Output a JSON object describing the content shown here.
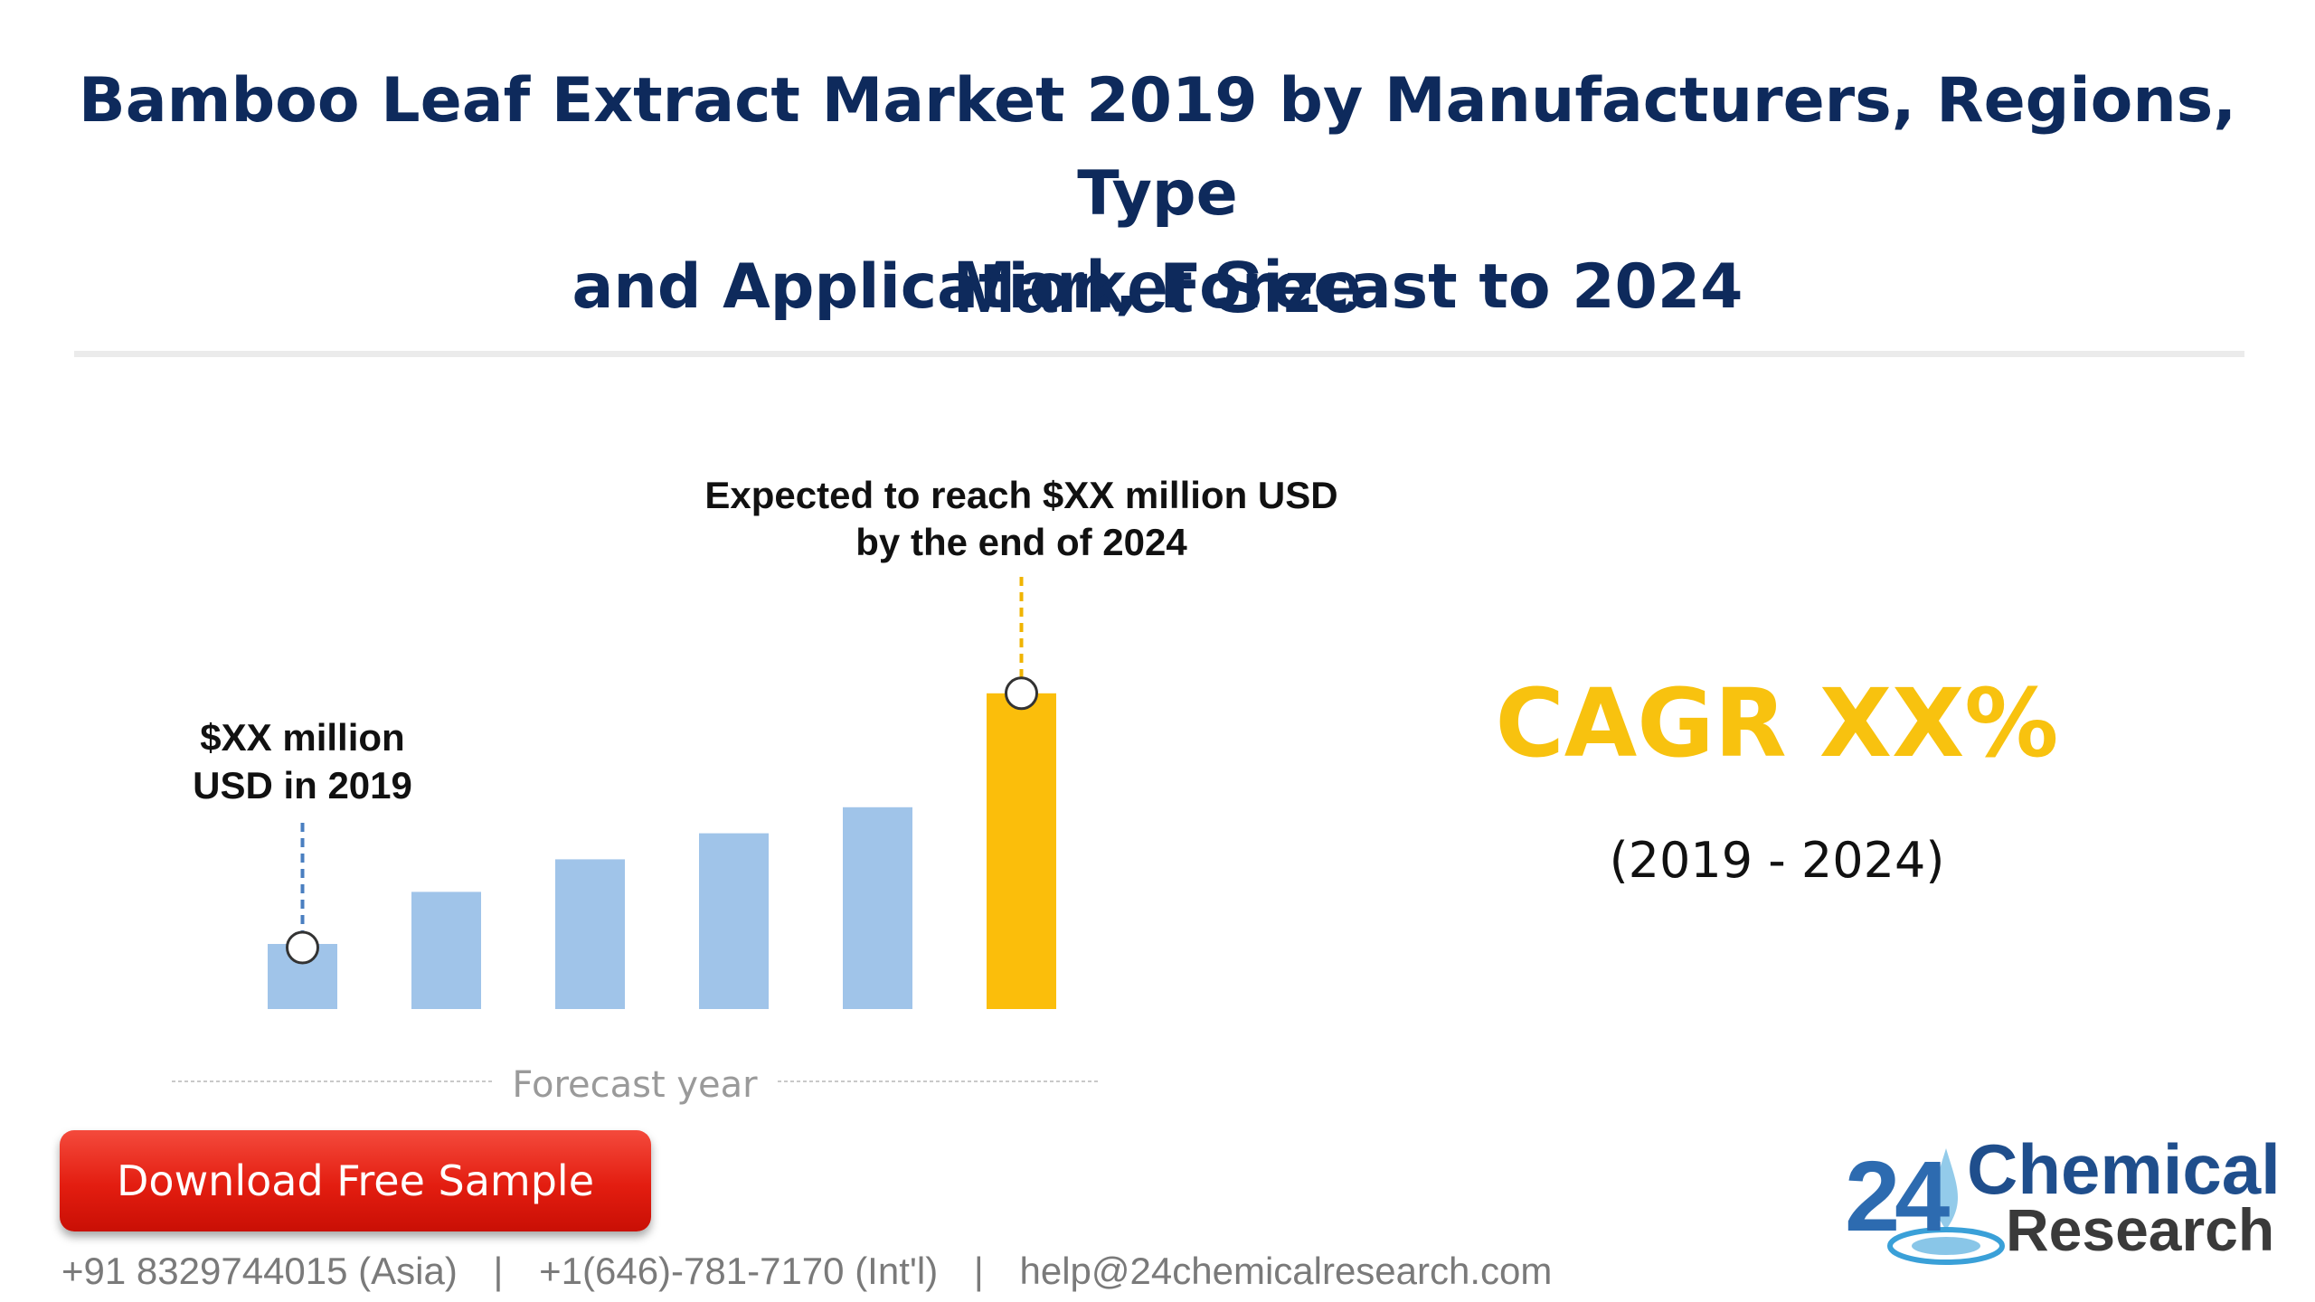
{
  "header": {
    "title_line1": "Bamboo Leaf Extract Market 2019 by Manufacturers, Regions, Type",
    "title_line2": "and Application, Forecast to 2024",
    "subtitle": "Market Size"
  },
  "chart_data": {
    "type": "bar",
    "categories": [
      "",
      "",
      "",
      "",
      "",
      ""
    ],
    "values": [
      20,
      36,
      46,
      54,
      62,
      97
    ],
    "xlabel": "Forecast year",
    "ylim": [
      0,
      100
    ],
    "grid": false,
    "annotations": {
      "start": {
        "line1": "$XX million",
        "line2": "USD in 2019"
      },
      "end": {
        "line1": "Expected to reach $XX million USD",
        "line2": "by the end of 2024"
      }
    },
    "colors": {
      "bar": "#a0c4e9",
      "highlight": "#fbbe0b",
      "start_marker": "#4a7fc0",
      "end_marker": "#f0b400",
      "axis_rule": "#bdbdbd",
      "label_text": "#111111",
      "xlabel_text": "#9a9a9a"
    }
  },
  "cagr": {
    "label": "CAGR XX%",
    "period": "(2019 - 2024)"
  },
  "cta": {
    "label": "Download Free Sample"
  },
  "contacts": {
    "phone_asia": "+91 8329744015 (Asia)",
    "separator": "|",
    "phone_intl": "+1(646)-781-7170 (Int'l)",
    "email": "help@24chemicalresearch.com"
  },
  "logo": {
    "number": "24",
    "word1": "Chemical",
    "word2": "Research"
  }
}
